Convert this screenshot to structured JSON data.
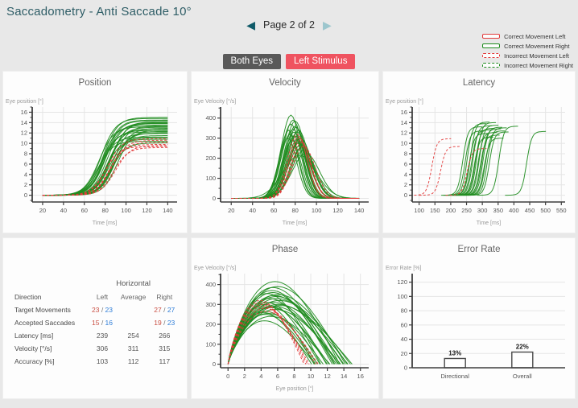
{
  "header": {
    "title": "Saccadometry - Anti Saccade 10°"
  },
  "nav": {
    "label": "Page 2 of 2",
    "prev_icon": "◀",
    "next_icon": "▶"
  },
  "toolbar": {
    "buttons": [
      {
        "label": "Both Eyes",
        "bg": "#595959",
        "fg": "#ffffff"
      },
      {
        "label": "Left Stimulus",
        "bg": "#ef5360",
        "fg": "#ffffff"
      }
    ]
  },
  "legend": {
    "items": [
      {
        "label": "Correct Movement Left",
        "color": "#e23b3b",
        "dashed": false
      },
      {
        "label": "Correct Movement Right",
        "color": "#1f8c1f",
        "dashed": false
      },
      {
        "label": "Incorrect Movement Left",
        "color": "#e23b3b",
        "dashed": true
      },
      {
        "label": "Incorrect Movement Right",
        "color": "#1f8c1f",
        "dashed": true
      }
    ]
  },
  "colors": {
    "green": "#1f8c1f",
    "red": "#e23b3b",
    "axis": "#3f3f3f",
    "grid": "#e5e5e5",
    "tick_text": "#555555",
    "axis_label": "#9a9a9a",
    "accent_teal": "#2e5d66"
  },
  "table": {
    "group_header": "Horizontal",
    "columns": [
      "Direction",
      "Left",
      "Average",
      "Right"
    ],
    "rows": [
      {
        "label": "Target Movements",
        "left": [
          "23",
          "23"
        ],
        "average": "",
        "right": [
          "27",
          "27"
        ]
      },
      {
        "label": "Accepted Saccades",
        "left": [
          "15",
          "16"
        ],
        "average": "",
        "right": [
          "19",
          "23"
        ]
      },
      {
        "label": "Latency [ms]",
        "left": "239",
        "average": "254",
        "right": "266"
      },
      {
        "label": "Velocity [°/s]",
        "left": "306",
        "average": "311",
        "right": "315"
      },
      {
        "label": "Accuracy [%]",
        "left": "103",
        "average": "112",
        "right": "117"
      }
    ]
  },
  "chart_data": [
    {
      "key": "position",
      "type": "line",
      "curve": "sigmoid",
      "title": "Position",
      "xlabel": "Time [ms]",
      "ylabel": "Eye position [°]",
      "xlim": [
        10,
        149
      ],
      "ylim": [
        -1.3,
        17
      ],
      "xticks": [
        20,
        40,
        60,
        80,
        100,
        120,
        140
      ],
      "yticks": [
        0,
        2,
        4,
        6,
        8,
        10,
        12,
        14,
        16
      ],
      "yminor": 1,
      "rate": 7,
      "span": [
        20,
        140
      ],
      "traces": {
        "green": [
          [
            74,
            13.2
          ],
          [
            76,
            14.8
          ],
          [
            78,
            12.5
          ],
          [
            80,
            13.8
          ],
          [
            82,
            11.9
          ],
          [
            84,
            13.1
          ],
          [
            86,
            14.2
          ],
          [
            88,
            12.0
          ],
          [
            75,
            11.2
          ],
          [
            77,
            13.5
          ],
          [
            79,
            14.5
          ],
          [
            81,
            10.8
          ],
          [
            83,
            12.8
          ],
          [
            85,
            13.9
          ],
          [
            87,
            11.5
          ],
          [
            89,
            12.3
          ],
          [
            73,
            10.4
          ],
          [
            78,
            15.0
          ],
          [
            82,
            14.0
          ],
          [
            86,
            10.1
          ],
          [
            90,
            12.9
          ],
          [
            76,
            12.2
          ],
          [
            84,
            11.1
          ],
          [
            80,
            14.4
          ],
          [
            88,
            13.4
          ],
          [
            92,
            12.6
          ]
        ],
        "red": [
          [
            80,
            9.4
          ],
          [
            84,
            9.8
          ],
          [
            86,
            10.6
          ],
          [
            88,
            9.2
          ],
          [
            82,
            10.9
          ],
          [
            90,
            9.6
          ],
          [
            85,
            10.2
          ]
        ]
      }
    },
    {
      "key": "velocity",
      "type": "line",
      "curve": "bell",
      "title": "Velocity",
      "xlabel": "Time [ms]",
      "ylabel": "Eye Velocity [°/s]",
      "xlim": [
        10,
        149
      ],
      "ylim": [
        -18,
        455
      ],
      "xticks": [
        20,
        40,
        60,
        80,
        100,
        120,
        140
      ],
      "yticks": [
        0,
        100,
        200,
        300,
        400
      ],
      "yminor": 50,
      "span": [
        20,
        140
      ],
      "traces": {
        "green": [
          [
            76,
            415,
            13
          ],
          [
            78,
            390,
            14
          ],
          [
            80,
            360,
            13
          ],
          [
            74,
            340,
            12
          ],
          [
            82,
            330,
            15
          ],
          [
            79,
            310,
            13
          ],
          [
            84,
            300,
            14
          ],
          [
            77,
            290,
            12
          ],
          [
            81,
            355,
            13
          ],
          [
            83,
            275,
            15
          ],
          [
            75,
            320,
            12
          ],
          [
            85,
            265,
            16
          ],
          [
            80,
            385,
            14
          ],
          [
            78,
            345,
            13
          ],
          [
            86,
            255,
            15
          ],
          [
            73,
            300,
            12
          ],
          [
            88,
            240,
            16
          ],
          [
            82,
            295,
            13
          ],
          [
            79,
            330,
            14
          ],
          [
            87,
            260,
            15
          ],
          [
            76,
            370,
            13
          ],
          [
            84,
            285,
            14
          ],
          [
            90,
            225,
            18
          ],
          [
            81,
            310,
            13
          ],
          [
            83,
            340,
            14
          ],
          [
            85,
            300,
            15
          ],
          [
            84,
            215,
            22
          ]
        ],
        "red": [
          [
            82,
            320,
            13
          ],
          [
            84,
            300,
            14
          ],
          [
            86,
            280,
            13
          ],
          [
            83,
            310,
            12
          ],
          [
            88,
            260,
            15
          ],
          [
            85,
            290,
            13
          ]
        ]
      }
    },
    {
      "key": "latency",
      "type": "line",
      "curve": "sigmoid-seg",
      "title": "Latency",
      "xlabel": "Time [ms]",
      "ylabel": "Eye position [°]",
      "xlim": [
        78,
        562
      ],
      "ylim": [
        -1.3,
        17
      ],
      "xticks": [
        100,
        150,
        200,
        250,
        300,
        350,
        400,
        450,
        500,
        550
      ],
      "yticks": [
        0,
        2,
        4,
        6,
        8,
        10,
        12,
        14,
        16
      ],
      "yminor": 1,
      "rate": 8,
      "traces": {
        "green": [
          [
            238,
            13.2
          ],
          [
            245,
            12.4
          ],
          [
            252,
            13.8
          ],
          [
            258,
            11.9
          ],
          [
            262,
            14.1
          ],
          [
            266,
            12.6
          ],
          [
            270,
            13.4
          ],
          [
            274,
            11.2
          ],
          [
            278,
            12.9
          ],
          [
            282,
            14.0
          ],
          [
            286,
            12.1
          ],
          [
            290,
            13.5
          ],
          [
            294,
            11.6
          ],
          [
            298,
            12.8
          ],
          [
            302,
            13.1
          ],
          [
            306,
            11.0
          ],
          [
            310,
            12.4
          ],
          [
            316,
            13.0
          ],
          [
            322,
            12.2
          ],
          [
            352,
            13.3
          ],
          [
            440,
            12.3
          ]
        ],
        "red": [
          [
            140,
            10.9
          ],
          [
            168,
            9.4
          ],
          [
            252,
            9.0
          ]
        ]
      }
    },
    {
      "key": "phase",
      "type": "line",
      "curve": "arc",
      "title": "Phase",
      "xlabel": "Eye position [°]",
      "ylabel": "Eye Velocity [°/s]",
      "xlim": [
        -0.9,
        17
      ],
      "ylim": [
        -18,
        455
      ],
      "xticks": [
        0,
        2,
        4,
        6,
        8,
        10,
        12,
        14,
        16
      ],
      "yticks": [
        0,
        100,
        200,
        300,
        400
      ],
      "yminor": 50,
      "traces": {
        "green": [
          [
            13.5,
            415
          ],
          [
            14.2,
            390
          ],
          [
            12.8,
            360
          ],
          [
            13.9,
            340
          ],
          [
            11.9,
            330
          ],
          [
            13.1,
            310
          ],
          [
            14.5,
            300
          ],
          [
            12.0,
            290
          ],
          [
            11.2,
            355
          ],
          [
            13.6,
            275
          ],
          [
            14.8,
            320
          ],
          [
            10.8,
            265
          ],
          [
            12.9,
            385
          ],
          [
            13.3,
            345
          ],
          [
            11.5,
            255
          ],
          [
            10.4,
            300
          ],
          [
            12.3,
            240
          ],
          [
            15.0,
            295
          ],
          [
            14.0,
            330
          ],
          [
            10.1,
            260
          ],
          [
            12.6,
            370
          ],
          [
            12.2,
            285
          ],
          [
            10.5,
            218
          ],
          [
            11.1,
            310
          ],
          [
            14.4,
            350
          ],
          [
            13.4,
            290
          ],
          [
            10.6,
            250
          ]
        ],
        "red": [
          [
            9.2,
            320
          ],
          [
            9.6,
            300
          ],
          [
            10.6,
            280
          ],
          [
            9.4,
            310
          ],
          [
            10.9,
            265
          ],
          [
            9.8,
            290
          ]
        ]
      }
    },
    {
      "key": "error_rate",
      "type": "bar",
      "title": "Error Rate",
      "ylabel": "Error Rate [%]",
      "xlabel": "",
      "ylim": [
        0,
        132
      ],
      "yticks": [
        0,
        20,
        40,
        60,
        80,
        100,
        120
      ],
      "categories": [
        "Directional",
        "Overall"
      ],
      "values": [
        13,
        22
      ],
      "labels": [
        "13%",
        "22%"
      ]
    }
  ]
}
